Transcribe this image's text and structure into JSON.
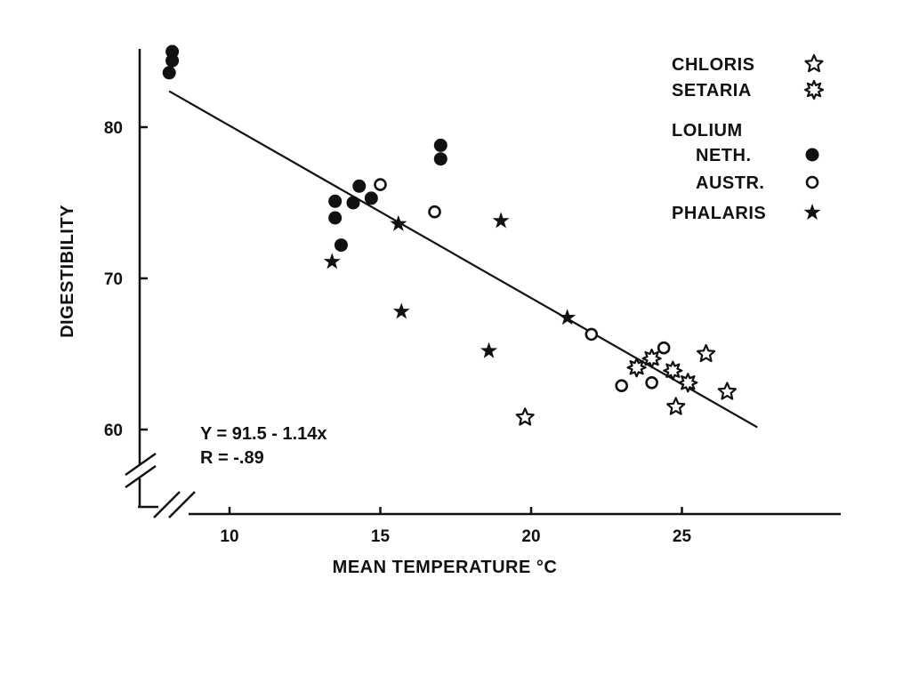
{
  "chart_data": {
    "type": "scatter",
    "xlabel": "MEAN TEMPERATURE °C",
    "ylabel": "DIGESTIBILITY",
    "xlim": [
      7,
      30
    ],
    "ylim": [
      55,
      85
    ],
    "x_ticks": [
      10,
      15,
      20,
      25
    ],
    "y_ticks": [
      60,
      70,
      80
    ],
    "x_axis_break": true,
    "y_axis_break": true,
    "grid": false,
    "legend_position": "top-right",
    "legend_group_header": "LOLIUM",
    "regression": {
      "equation": "Y = 91.5 - 1.14x",
      "r_text": "R = -.89",
      "intercept": 91.5,
      "slope": -1.14,
      "x_range": [
        8,
        27.5
      ]
    },
    "series": [
      {
        "name": "CHLORIS",
        "marker": "open-star",
        "points": [
          [
            19.8,
            60.8
          ],
          [
            24.8,
            61.5
          ],
          [
            25.8,
            65.0
          ],
          [
            26.5,
            62.5
          ]
        ]
      },
      {
        "name": "SETARIA",
        "marker": "open-sun",
        "points": [
          [
            23.5,
            64.1
          ],
          [
            24.0,
            64.7
          ],
          [
            24.7,
            63.9
          ],
          [
            25.2,
            63.1
          ]
        ]
      },
      {
        "name": "NETH.",
        "marker": "filled-circle",
        "points": [
          [
            8.1,
            85.0
          ],
          [
            8.1,
            84.4
          ],
          [
            8.0,
            83.6
          ],
          [
            13.5,
            75.1
          ],
          [
            13.5,
            74.0
          ],
          [
            13.7,
            72.2
          ],
          [
            14.1,
            75.0
          ],
          [
            14.3,
            76.1
          ],
          [
            14.7,
            75.3
          ],
          [
            17.0,
            78.8
          ],
          [
            17.0,
            77.9
          ]
        ]
      },
      {
        "name": "AUSTR.",
        "marker": "open-circle",
        "points": [
          [
            15.0,
            76.2
          ],
          [
            16.8,
            74.4
          ],
          [
            22.0,
            66.3
          ],
          [
            23.0,
            62.9
          ],
          [
            24.0,
            63.1
          ],
          [
            24.4,
            65.4
          ]
        ]
      },
      {
        "name": "PHALARIS",
        "marker": "filled-star",
        "points": [
          [
            13.4,
            71.1
          ],
          [
            15.6,
            73.6
          ],
          [
            15.7,
            67.8
          ],
          [
            18.6,
            65.2
          ],
          [
            19.0,
            73.8
          ],
          [
            21.2,
            67.4
          ]
        ]
      }
    ]
  }
}
